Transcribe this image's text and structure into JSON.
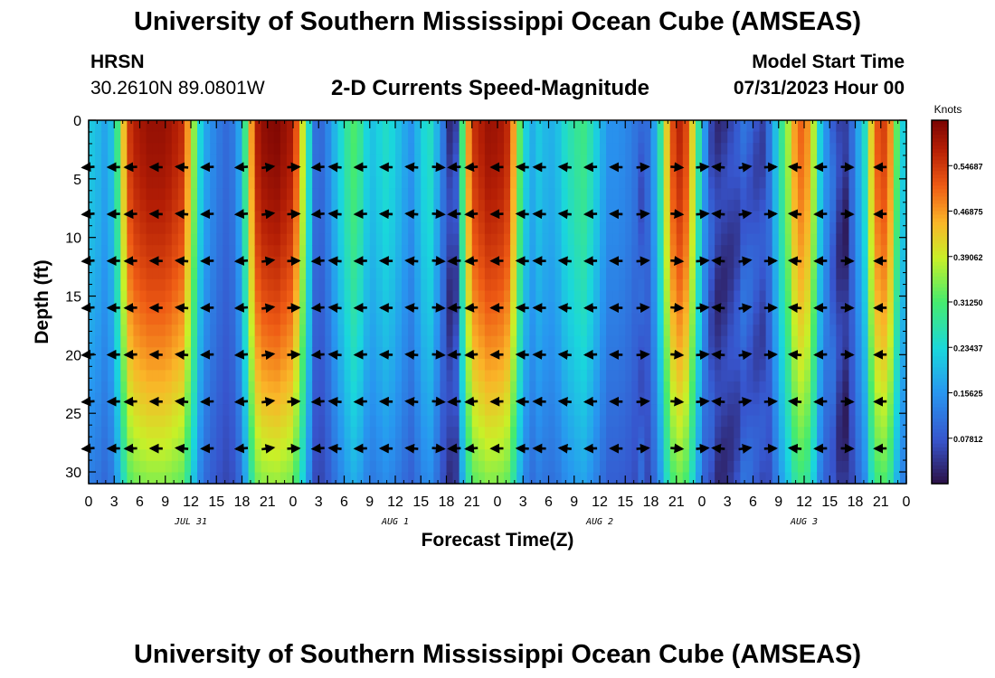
{
  "header": {
    "title": "University of Southern Mississippi Ocean Cube (AMSEAS)",
    "station": "HRSN",
    "coords": "30.2610N  89.0801W",
    "plot_title": "2-D Currents Speed-Magnitude",
    "start_label": "Model Start Time",
    "start_value": "07/31/2023 Hour 00"
  },
  "footer": {
    "title": "University of Southern Mississippi Ocean Cube (AMSEAS)"
  },
  "chart_data": {
    "type": "heatmap",
    "title": "2-D Currents Speed-Magnitude",
    "xlabel": "Forecast Time(Z)",
    "ylabel": "Depth (ft)",
    "x_range_hours": [
      0,
      96
    ],
    "ylim": [
      31,
      0
    ],
    "yticks": [
      "0",
      "5",
      "10",
      "15",
      "20",
      "25",
      "30"
    ],
    "xticks": [
      "0",
      "3",
      "6",
      "9",
      "12",
      "15",
      "18",
      "21",
      "0",
      "3",
      "6",
      "9",
      "12",
      "15",
      "18",
      "21",
      "0",
      "3",
      "6",
      "9",
      "12",
      "15",
      "18",
      "21",
      "0",
      "3",
      "6",
      "9",
      "12",
      "15",
      "18",
      "21",
      "0"
    ],
    "day_labels": [
      {
        "hour": 12,
        "label": "JUL 31"
      },
      {
        "hour": 36,
        "label": "AUG 1"
      },
      {
        "hour": 60,
        "label": "AUG 2"
      },
      {
        "hour": 84,
        "label": "AUG 3"
      }
    ],
    "colorbar": {
      "label": "Knots",
      "vmin": 0.0,
      "vmax": 0.625,
      "ticks": [
        "0.54687",
        "0.46875",
        "0.39062",
        "0.31250",
        "0.23437",
        "0.15625",
        "0.07812"
      ]
    },
    "surface_speed_knots": [
      {
        "hour": 0,
        "v": 0.22
      },
      {
        "hour": 1,
        "v": 0.2
      },
      {
        "hour": 2,
        "v": 0.17
      },
      {
        "hour": 3,
        "v": 0.22
      },
      {
        "hour": 4,
        "v": 0.42
      },
      {
        "hour": 5,
        "v": 0.57
      },
      {
        "hour": 7,
        "v": 0.6
      },
      {
        "hour": 9,
        "v": 0.6
      },
      {
        "hour": 11,
        "v": 0.56
      },
      {
        "hour": 12,
        "v": 0.42
      },
      {
        "hour": 13,
        "v": 0.24
      },
      {
        "hour": 14,
        "v": 0.16
      },
      {
        "hour": 15,
        "v": 0.13
      },
      {
        "hour": 16,
        "v": 0.1
      },
      {
        "hour": 17,
        "v": 0.12
      },
      {
        "hour": 18,
        "v": 0.2
      },
      {
        "hour": 19,
        "v": 0.45
      },
      {
        "hour": 20,
        "v": 0.6
      },
      {
        "hour": 22,
        "v": 0.62
      },
      {
        "hour": 24,
        "v": 0.58
      },
      {
        "hour": 25,
        "v": 0.42
      },
      {
        "hour": 26,
        "v": 0.22
      },
      {
        "hour": 26.8,
        "v": 0.08
      },
      {
        "hour": 28,
        "v": 0.13
      },
      {
        "hour": 29,
        "v": 0.2
      },
      {
        "hour": 31,
        "v": 0.32
      },
      {
        "hour": 32,
        "v": 0.28
      },
      {
        "hour": 33,
        "v": 0.2
      },
      {
        "hour": 35,
        "v": 0.25
      },
      {
        "hour": 36,
        "v": 0.22
      },
      {
        "hour": 37,
        "v": 0.18
      },
      {
        "hour": 38,
        "v": 0.15
      },
      {
        "hour": 39,
        "v": 0.22
      },
      {
        "hour": 40,
        "v": 0.26
      },
      {
        "hour": 41,
        "v": 0.18
      },
      {
        "hour": 42,
        "v": 0.08
      },
      {
        "hour": 42.6,
        "v": 0.03
      },
      {
        "hour": 43.2,
        "v": 0.07
      },
      {
        "hour": 44,
        "v": 0.35
      },
      {
        "hour": 45,
        "v": 0.55
      },
      {
        "hour": 47,
        "v": 0.6
      },
      {
        "hour": 49,
        "v": 0.58
      },
      {
        "hour": 50,
        "v": 0.45
      },
      {
        "hour": 51,
        "v": 0.25
      },
      {
        "hour": 52,
        "v": 0.18
      },
      {
        "hour": 53,
        "v": 0.22
      },
      {
        "hour": 54,
        "v": 0.18
      },
      {
        "hour": 55,
        "v": 0.2
      },
      {
        "hour": 56,
        "v": 0.25
      },
      {
        "hour": 58,
        "v": 0.3
      },
      {
        "hour": 59,
        "v": 0.26
      },
      {
        "hour": 60,
        "v": 0.2
      },
      {
        "hour": 61,
        "v": 0.15
      },
      {
        "hour": 62,
        "v": 0.15
      },
      {
        "hour": 63,
        "v": 0.14
      },
      {
        "hour": 64,
        "v": 0.12
      },
      {
        "hour": 65,
        "v": 0.08
      },
      {
        "hour": 66,
        "v": 0.12
      },
      {
        "hour": 67,
        "v": 0.25
      },
      {
        "hour": 68,
        "v": 0.45
      },
      {
        "hour": 69,
        "v": 0.58
      },
      {
        "hour": 70,
        "v": 0.55
      },
      {
        "hour": 71,
        "v": 0.4
      },
      {
        "hour": 72,
        "v": 0.2
      },
      {
        "hour": 73,
        "v": 0.08
      },
      {
        "hour": 74,
        "v": 0.04
      },
      {
        "hour": 75,
        "v": 0.05
      },
      {
        "hour": 76,
        "v": 0.06
      },
      {
        "hour": 77,
        "v": 0.1
      },
      {
        "hour": 78,
        "v": 0.08
      },
      {
        "hour": 79,
        "v": 0.06
      },
      {
        "hour": 80,
        "v": 0.12
      },
      {
        "hour": 81,
        "v": 0.25
      },
      {
        "hour": 82,
        "v": 0.35
      },
      {
        "hour": 83,
        "v": 0.48
      },
      {
        "hour": 84,
        "v": 0.52
      },
      {
        "hour": 85,
        "v": 0.4
      },
      {
        "hour": 86,
        "v": 0.2
      },
      {
        "hour": 87,
        "v": 0.12
      },
      {
        "hour": 88,
        "v": 0.05
      },
      {
        "hour": 89,
        "v": 0.03
      },
      {
        "hour": 90,
        "v": 0.15
      },
      {
        "hour": 91,
        "v": 0.22
      },
      {
        "hour": 92,
        "v": 0.45
      },
      {
        "hour": 93,
        "v": 0.56
      },
      {
        "hour": 94,
        "v": 0.5
      },
      {
        "hour": 95,
        "v": 0.3
      },
      {
        "hour": 96,
        "v": 0.18
      }
    ],
    "vector_depths_ft": [
      4,
      8,
      12,
      16,
      20,
      24,
      28
    ],
    "vector_hours": [
      0,
      3,
      5,
      8,
      11,
      14,
      18,
      21,
      24,
      27,
      29,
      32,
      35,
      38,
      41,
      43,
      45,
      48,
      51,
      53,
      56,
      59,
      62,
      65,
      69,
      72,
      74,
      77,
      80,
      83,
      86,
      89,
      93
    ]
  }
}
